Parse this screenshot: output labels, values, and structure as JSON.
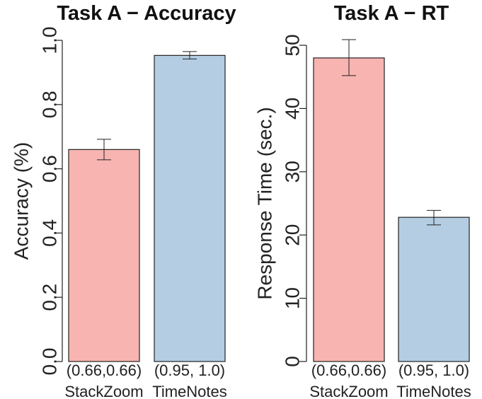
{
  "colors": {
    "stackzoom": "#F8B4B1",
    "timenotes": "#B4CDE3",
    "stroke": "#222222"
  },
  "chart_data": [
    {
      "type": "bar",
      "title": "Task A − Accuracy",
      "xlabel": "",
      "ylabel": "Accuracy (%)",
      "ylim": [
        0,
        1
      ],
      "yticks": [
        "0.0",
        "0.2",
        "0.4",
        "0.6",
        "0.8",
        "1.0"
      ],
      "categories": [
        "StackZoom",
        "TimeNotes"
      ],
      "category_sublabels": [
        "(0.66,0.66)",
        "(0.95, 1.0)"
      ],
      "values": [
        0.66,
        0.953
      ],
      "error_low": [
        0.628,
        0.942
      ],
      "error_high": [
        0.692,
        0.965
      ],
      "grid": false,
      "legend": "none"
    },
    {
      "type": "bar",
      "title": "Task A − RT",
      "xlabel": "",
      "ylabel": "Response Time (sec.)",
      "ylim": [
        0,
        50
      ],
      "yticks": [
        "0",
        "10",
        "20",
        "30",
        "40",
        "50"
      ],
      "categories": [
        "StackZoom",
        "TimeNotes"
      ],
      "category_sublabels": [
        "(0.66,0.66)",
        "(0.95, 1.0)"
      ],
      "values": [
        48,
        22.8
      ],
      "error_low": [
        45.2,
        21.6
      ],
      "error_high": [
        50.9,
        23.9
      ],
      "grid": false,
      "legend": "none"
    }
  ]
}
